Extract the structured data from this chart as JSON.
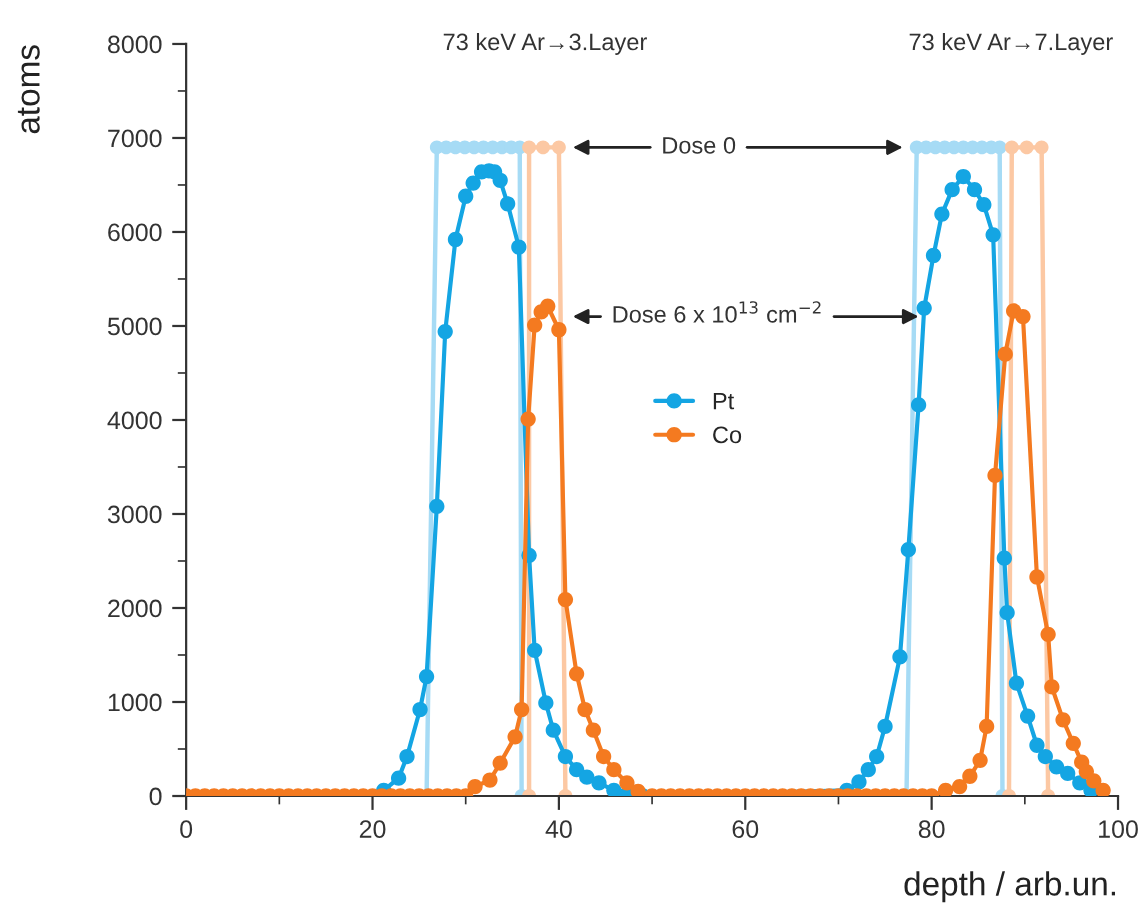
{
  "chart_data": {
    "type": "line",
    "xlabel": "depth / arb.un.",
    "ylabel": "atoms",
    "xlim": [
      0,
      100
    ],
    "xticks": [
      0,
      20,
      40,
      60,
      80,
      100
    ],
    "ylim": [
      0,
      8000
    ],
    "yticks": [
      0,
      1000,
      2000,
      3000,
      4000,
      5000,
      6000,
      7000,
      8000
    ],
    "grid": false,
    "legend": "center",
    "marker": "circle",
    "line_style": "solid",
    "annotations": [
      "73 keV Ar→3.Layer",
      "73 keV Ar→7.Layer",
      "Dose 0",
      {
        "text": "Dose 6 x 10$^{13}$ cm$^{−2}$",
        "x": 78.6,
        "y": 5100
      }
    ],
    "series": [
      {
        "color": "#a6dbf5",
        "x": [
          25.8,
          26.9,
          27.9,
          28.9,
          29.9,
          30.9,
          31.9,
          32.9,
          33.9,
          34.9,
          35.8,
          36.0
        ],
        "values": [
          0,
          6900,
          6900,
          6900,
          6900,
          6900,
          6900,
          6900,
          6900,
          6900,
          6900,
          0
        ]
      },
      {
        "color": "#fcc8a3",
        "x": [
          36.8,
          36.8,
          38.3,
          40.0,
          40.7
        ],
        "values": [
          0,
          6900,
          6900,
          6900,
          0
        ]
      },
      {
        "color": "#a6dbf5",
        "x": [
          77.3,
          78.4,
          79.4,
          80.4,
          81.4,
          82.4,
          83.4,
          84.4,
          85.4,
          86.4,
          87.3,
          87.6
        ],
        "values": [
          0,
          6900,
          6900,
          6900,
          6900,
          6900,
          6900,
          6900,
          6900,
          6900,
          6900,
          0
        ]
      },
      {
        "color": "#fcc8a3",
        "x": [
          88.3,
          88.6,
          90.2,
          91.8,
          92.5
        ],
        "values": [
          0,
          6900,
          6900,
          6900,
          0
        ]
      },
      {
        "name": "Pt",
        "color": "#14a5e3",
        "x": [
          21.2,
          22.8,
          23.7,
          25.1,
          25.8,
          26.9,
          27.8,
          28.9,
          30.0,
          30.8,
          31.7,
          32.5,
          33.1,
          33.7,
          34.5,
          35.7,
          36.8,
          37.4,
          38.6,
          39.4,
          40.7,
          41.9,
          43.0,
          44.3,
          45.9,
          47,
          48,
          49,
          60,
          70.9,
          72.2,
          73.2,
          74.1,
          75.0,
          76.6,
          77.5,
          78.6,
          79.2,
          80.2,
          81.1,
          82.2,
          83.4,
          84.6,
          85.6,
          86.6,
          87.8,
          88.1,
          89.1,
          90.3,
          91.3,
          92.2,
          93.4,
          94.6,
          95.9,
          97.1
        ],
        "values": [
          60,
          190,
          420,
          920,
          1270,
          3080,
          4940,
          5920,
          6380,
          6520,
          6640,
          6650,
          6640,
          6550,
          6300,
          5840,
          2560,
          1550,
          990,
          700,
          420,
          280,
          200,
          140,
          60,
          0,
          0,
          0,
          null,
          60,
          150,
          280,
          420,
          740,
          1480,
          2620,
          4160,
          5190,
          5750,
          6190,
          6450,
          6590,
          6450,
          6290,
          5970,
          2530,
          1950,
          1200,
          850,
          540,
          420,
          310,
          240,
          140,
          60
        ]
      },
      {
        "name": "Co",
        "color": "#f47a20",
        "x": [
          0,
          1,
          2,
          3,
          4,
          5,
          6,
          7,
          8,
          9,
          10,
          11,
          12,
          13,
          14,
          15,
          16,
          17,
          18,
          19,
          20,
          21,
          22,
          23,
          24,
          25,
          26,
          27,
          28,
          29,
          30,
          31.0,
          32.6,
          33.7,
          35.3,
          36.0,
          36.7,
          37.4,
          38.1,
          38.8,
          40.0,
          40.7,
          41.9,
          42.8,
          43.7,
          44.8,
          45.9,
          47.3,
          48.5,
          50,
          51,
          52,
          53,
          54,
          55,
          56,
          57,
          58,
          59,
          60,
          61,
          62,
          63,
          64,
          65,
          66,
          67,
          68,
          69,
          70,
          71,
          72,
          73,
          74,
          75,
          76,
          77,
          78,
          79,
          80,
          81.5,
          83.0,
          84.1,
          85.2,
          85.9,
          86.8,
          87.9,
          88.8,
          89.8,
          91.3,
          92.5,
          92.9,
          94.1,
          95.2,
          96.1,
          96.6,
          97.4,
          98.4
        ],
        "values": [
          0,
          0,
          0,
          0,
          0,
          0,
          0,
          0,
          0,
          0,
          0,
          0,
          0,
          0,
          0,
          0,
          0,
          0,
          0,
          0,
          0,
          0,
          0,
          0,
          0,
          0,
          0,
          0,
          0,
          0,
          0,
          100,
          170,
          350,
          630,
          920,
          4010,
          5010,
          5150,
          5210,
          4960,
          2090,
          1300,
          920,
          700,
          420,
          280,
          140,
          50,
          0,
          0,
          0,
          0,
          0,
          0,
          0,
          0,
          0,
          0,
          0,
          0,
          0,
          0,
          0,
          0,
          0,
          0,
          0,
          0,
          0,
          0,
          0,
          0,
          0,
          0,
          0,
          0,
          0,
          0,
          0,
          60,
          100,
          210,
          380,
          740,
          3410,
          4700,
          5160,
          5100,
          2330,
          1720,
          1160,
          810,
          560,
          360,
          260,
          160,
          60
        ]
      }
    ]
  }
}
